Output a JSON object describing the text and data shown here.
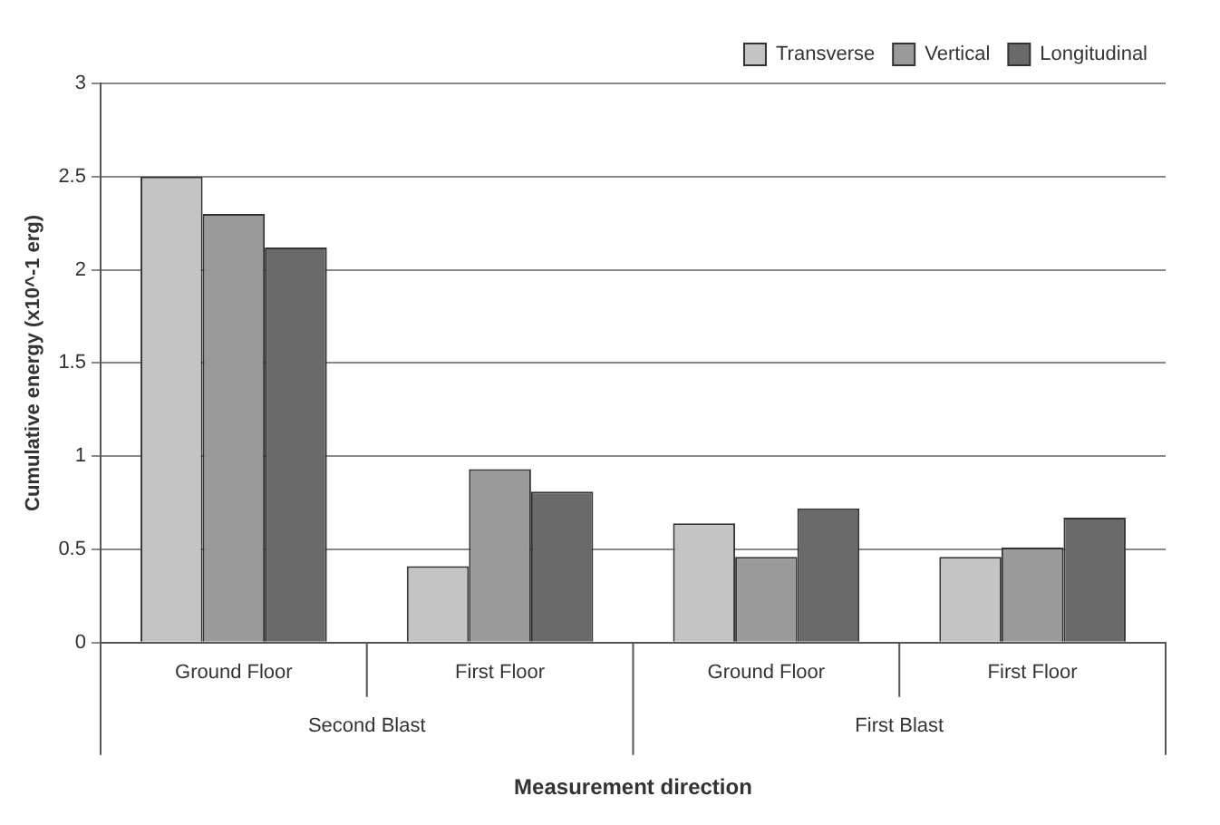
{
  "chart_data": {
    "type": "bar",
    "xlabel": "Measurement direction",
    "ylabel": "Cumulative energy (x10^-1 erg)",
    "categories": [
      "Ground Floor",
      "First Floor",
      "Ground Floor",
      "First Floor"
    ],
    "series": [
      {
        "name": "Transverse",
        "color": "#c4c4c4",
        "values": [
          2.5,
          0.41,
          0.64,
          0.46
        ]
      },
      {
        "name": "Vertical",
        "color": "#9a9a9a",
        "values": [
          2.3,
          0.93,
          0.46,
          0.51
        ]
      },
      {
        "name": "Longitudinal",
        "color": "#6a6a6a",
        "values": [
          2.12,
          0.81,
          0.72,
          0.67
        ]
      }
    ],
    "annotations": [
      "Second Blast",
      "First Blast"
    ],
    "ylim": [
      0,
      3
    ],
    "yticks": [
      0,
      0.5,
      1,
      1.5,
      2,
      2.5,
      3
    ],
    "grid": "y",
    "legend": "top right"
  }
}
